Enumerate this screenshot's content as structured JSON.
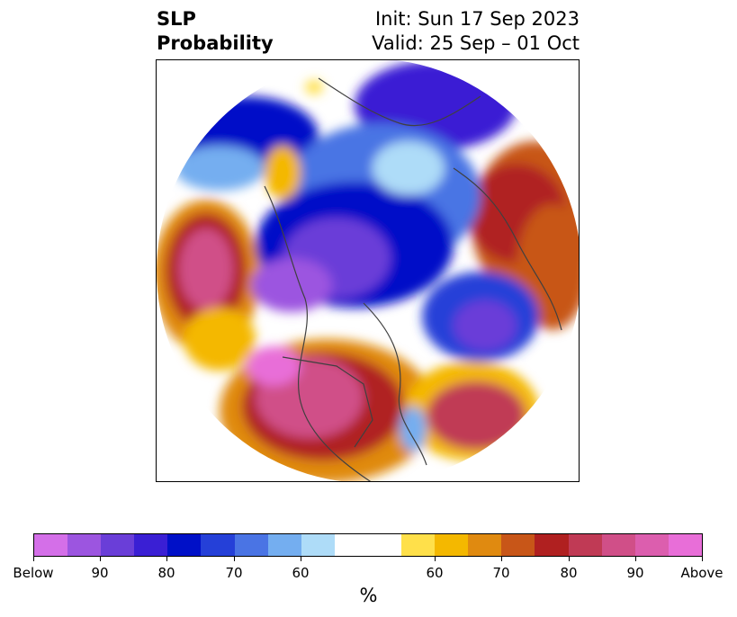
{
  "title": {
    "left_line1": "SLP",
    "left_line2": "Probability",
    "right_line1": "Init: Sun 17 Sep 2023",
    "right_line2": "Valid: 25 Sep – 01 Oct"
  },
  "colorbar": {
    "label": "%",
    "colors": [
      "#d46fe8",
      "#9c55e0",
      "#6a3ed8",
      "#3a1fd4",
      "#0010c8",
      "#2540d8",
      "#4a74e4",
      "#74aef0",
      "#aedcf8",
      "#ffffff",
      "#ffffff",
      "#ffe04a",
      "#f4b800",
      "#e08a10",
      "#c85618",
      "#b02020",
      "#c03a55",
      "#d04f88",
      "#dc5eae",
      "#e86ed8"
    ],
    "tick_labels": [
      "Below",
      "90",
      "80",
      "70",
      "60",
      "60",
      "70",
      "80",
      "90",
      "Above"
    ]
  },
  "map": {
    "projection": "north-polar-stereographic",
    "regions": [
      {
        "name": "north-pacific-high",
        "category": "above",
        "level": 90
      },
      {
        "name": "western-north-america-high",
        "category": "above",
        "level": 90
      },
      {
        "name": "north-atlantic-high",
        "category": "above",
        "level": 80
      },
      {
        "name": "eastern-europe-high",
        "category": "above",
        "level": 80
      },
      {
        "name": "arctic-low",
        "category": "below",
        "level": 80
      },
      {
        "name": "hudson-bay-low",
        "category": "below",
        "level": 90
      },
      {
        "name": "siberia-low",
        "category": "below",
        "level": 80
      },
      {
        "name": "western-europe-low",
        "category": "below",
        "level": 90
      },
      {
        "name": "north-pacific-low",
        "category": "below",
        "level": 80
      }
    ]
  }
}
